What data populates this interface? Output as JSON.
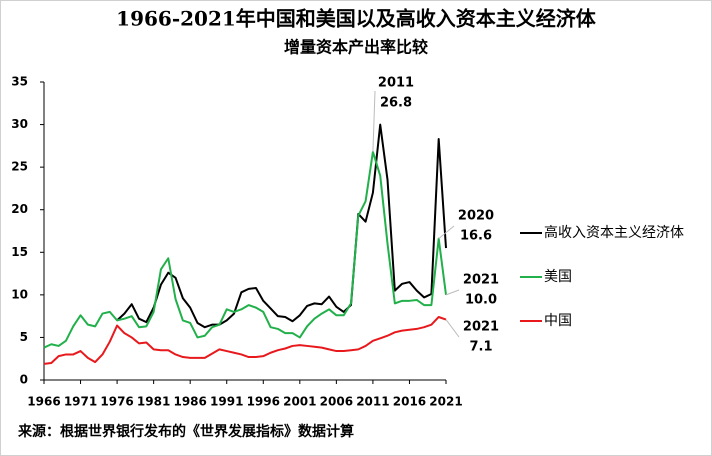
{
  "chart_data": {
    "type": "line",
    "title": "1966-2021年中国和美国以及高收入资本主义经济体",
    "subtitle": "增量资本产出率比较",
    "note": "来源：根据世界银行发布的《世界发展指标》数据计算",
    "x": [
      1966,
      1967,
      1968,
      1969,
      1970,
      1971,
      1972,
      1973,
      1974,
      1975,
      1976,
      1977,
      1978,
      1979,
      1980,
      1981,
      1982,
      1983,
      1984,
      1985,
      1986,
      1987,
      1988,
      1989,
      1990,
      1991,
      1992,
      1993,
      1994,
      1995,
      1996,
      1997,
      1998,
      1999,
      2000,
      2001,
      2002,
      2003,
      2004,
      2005,
      2006,
      2007,
      2008,
      2009,
      2010,
      2011,
      2012,
      2013,
      2014,
      2015,
      2016,
      2017,
      2018,
      2019,
      2020,
      2021
    ],
    "series": [
      {
        "name": "高收入资本主义经济体",
        "color": "#000000",
        "values": [
          null,
          null,
          null,
          null,
          null,
          null,
          null,
          null,
          null,
          null,
          7.0,
          7.8,
          8.9,
          7.2,
          6.8,
          8.5,
          11.2,
          12.6,
          12.0,
          9.6,
          8.5,
          6.7,
          6.2,
          6.5,
          6.5,
          7.0,
          7.8,
          10.3,
          10.7,
          10.8,
          9.3,
          8.4,
          7.5,
          7.4,
          6.9,
          7.6,
          8.7,
          9.0,
          8.9,
          9.8,
          8.6,
          8.0,
          8.8,
          19.5,
          18.6,
          22.0,
          30.0,
          23.5,
          10.5,
          11.3,
          11.5,
          10.5,
          9.7,
          10.1,
          28.3,
          15.5
        ]
      },
      {
        "name": "美国",
        "color": "#22b04b",
        "values": [
          3.8,
          4.2,
          4.0,
          4.6,
          6.3,
          7.6,
          6.5,
          6.3,
          7.8,
          8.0,
          7.0,
          7.2,
          7.5,
          6.2,
          6.3,
          8.0,
          13.0,
          14.3,
          9.5,
          7.0,
          6.7,
          5.0,
          5.2,
          6.2,
          6.5,
          8.3,
          8.0,
          8.3,
          8.8,
          8.5,
          8.0,
          6.2,
          6.0,
          5.5,
          5.5,
          5.0,
          6.3,
          7.2,
          7.8,
          8.3,
          7.6,
          7.6,
          9.0,
          19.3,
          21.0,
          26.8,
          24.0,
          16.0,
          9.0,
          9.3,
          9.3,
          9.4,
          8.8,
          8.8,
          16.6,
          10.0
        ]
      },
      {
        "name": "中国",
        "color": "#e8191c",
        "values": [
          1.9,
          2.0,
          2.8,
          3.0,
          3.0,
          3.4,
          2.6,
          2.1,
          3.0,
          4.5,
          6.4,
          5.5,
          5.0,
          4.3,
          4.4,
          3.6,
          3.5,
          3.5,
          3.0,
          2.7,
          2.6,
          2.6,
          2.6,
          3.1,
          3.6,
          3.4,
          3.2,
          3.0,
          2.7,
          2.7,
          2.8,
          3.2,
          3.5,
          3.7,
          4.0,
          4.1,
          4.0,
          3.9,
          3.8,
          3.6,
          3.4,
          3.4,
          3.5,
          3.6,
          4.0,
          4.6,
          4.9,
          5.2,
          5.6,
          5.8,
          5.9,
          6.0,
          6.2,
          6.5,
          7.4,
          7.1
        ]
      }
    ],
    "annotations": [
      {
        "year": 2011,
        "value": 26.8,
        "label": "26.8"
      },
      {
        "year": 2020,
        "value": 16.6,
        "label": "16.6"
      },
      {
        "year": 2021,
        "value": 10.0,
        "label": "10.0"
      },
      {
        "year": 2021,
        "value": 7.1,
        "label": "7.1"
      }
    ],
    "xlim": [
      1966,
      2021
    ],
    "xticks": [
      1966,
      1971,
      1976,
      1981,
      1986,
      1991,
      1996,
      2001,
      2006,
      2011,
      2016,
      2021
    ],
    "ylim": [
      0,
      35
    ],
    "yticks": [
      0,
      5,
      10,
      15,
      20,
      25,
      30,
      35
    ],
    "grid": false,
    "legend": "right"
  }
}
